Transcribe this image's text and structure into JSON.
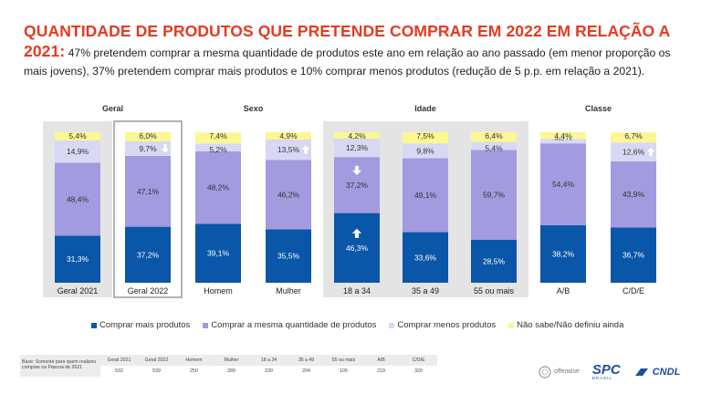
{
  "title": {
    "red": "QUANTIDADE DE PRODUTOS QUE PRETENDE COMPRAR EM 2022 EM RELAÇÃO A 2021:",
    "rest": " 47% pretendem comprar a mesma quantidade de produtos este ano em relação ao ano passado (em menor proporção os mais jovens), 37% pretendem comprar mais produtos e 10% comprar menos produtos (redução de 5 p.p. em relação a 2021)."
  },
  "chart_data": {
    "type": "bar",
    "stacked": true,
    "groups": [
      {
        "label": "Geral",
        "categories": [
          "Geral 2021",
          "Geral 2022"
        ]
      },
      {
        "label": "Sexo",
        "categories": [
          "Homem",
          "Mulher"
        ]
      },
      {
        "label": "Idade",
        "categories": [
          "18 a 34",
          "35 a 49",
          "55 ou mais"
        ]
      },
      {
        "label": "Classe",
        "categories": [
          "A/B",
          "C/D/E"
        ]
      }
    ],
    "categories": [
      "Geral 2021",
      "Geral 2022",
      "Homem",
      "Mulher",
      "18 a 34",
      "35 a 49",
      "55 ou mais",
      "A/B",
      "C/D/E"
    ],
    "series": [
      {
        "name": "Comprar mais produtos",
        "color": "#0a56a8",
        "values": [
          31.3,
          37.2,
          39.1,
          35.5,
          46.3,
          33.6,
          28.5,
          38.2,
          36.7
        ],
        "labels": [
          "31,3%",
          "37,2%",
          "39,1%",
          "35,5%",
          "46,3%",
          "33,6%",
          "28,5%",
          "38,2%",
          "36,7%"
        ]
      },
      {
        "name": "Comprar a mesma quantidade de produtos",
        "color": "#a29be0",
        "values": [
          48.4,
          47.1,
          48.2,
          46.2,
          37.2,
          49.1,
          59.7,
          54.4,
          43.9
        ],
        "labels": [
          "48,4%",
          "47,1%",
          "48,2%",
          "46,2%",
          "37,2%",
          "49,1%",
          "59,7%",
          "54,4%",
          "43,9%"
        ]
      },
      {
        "name": "Comprar menos produtos",
        "color": "#d8d8f4",
        "values": [
          14.9,
          9.7,
          5.2,
          13.5,
          12.3,
          9.8,
          5.4,
          3.0,
          12.6
        ],
        "labels": [
          "14,9%",
          "9,7%",
          "5,2%",
          "13,5%",
          "12,3%",
          "9,8%",
          "5,4%",
          "3,0%",
          "12,6%"
        ]
      },
      {
        "name": "Não sabe/Não definiu ainda",
        "color": "#fbf792",
        "values": [
          5.4,
          6.0,
          7.4,
          4.9,
          4.2,
          7.5,
          6.4,
          4.4,
          6.7
        ],
        "labels": [
          "5,4%",
          "6,0%",
          "7,4%",
          "4,9%",
          "4,2%",
          "7,5%",
          "6,4%",
          "4,4%",
          "6,7%"
        ]
      }
    ],
    "arrows": [
      {
        "category": "Geral 2022",
        "series": "Comprar menos produtos",
        "direction": "down"
      },
      {
        "category": "Mulher",
        "series": "Comprar menos produtos",
        "direction": "up"
      },
      {
        "category": "18 a 34",
        "series": "Comprar a mesma quantidade de produtos",
        "direction": "down"
      },
      {
        "category": "18 a 34",
        "series": "Comprar mais produtos",
        "direction": "up"
      },
      {
        "category": "C/D/E",
        "series": "Comprar menos produtos",
        "direction": "up"
      }
    ],
    "ylim": [
      0,
      100
    ],
    "legend": "bottom"
  },
  "base_table": {
    "label": "Base: Somente para quem realizou compras na Páscoa de 2021",
    "headers": [
      "Geral 2021",
      "Geral 2022",
      "Homem",
      "Mulher",
      "18 a 34",
      "35 a 49",
      "55 ou mais",
      "A/B",
      "C/D/E"
    ],
    "values": [
      "532",
      "539",
      "250",
      "289",
      "230",
      "204",
      "105",
      "219",
      "320"
    ]
  },
  "logos": {
    "offerwise": "offerwise",
    "spc": "SPC",
    "spc_sub": "BRASIL",
    "cndl": "CNDL"
  }
}
